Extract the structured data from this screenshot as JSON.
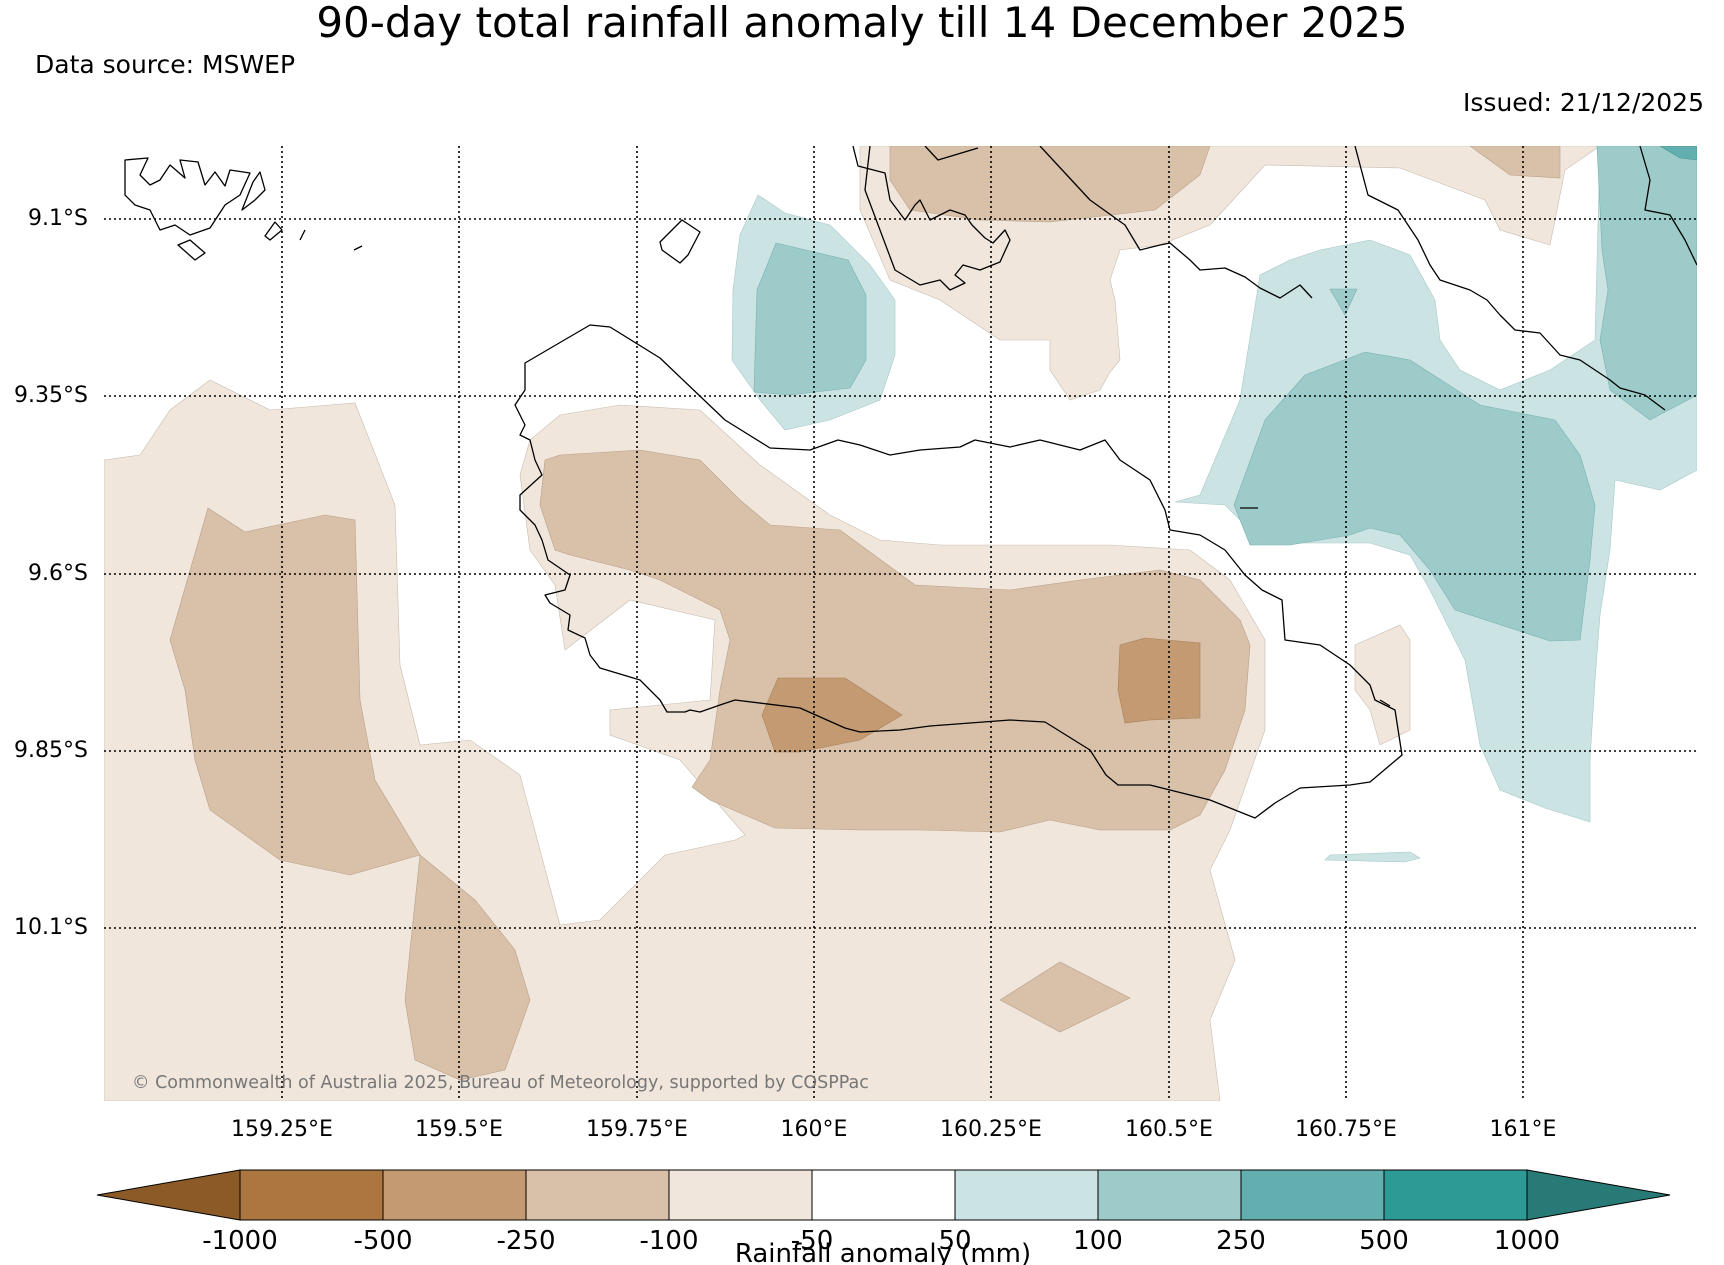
{
  "header": {
    "title": "90-day total rainfall anomaly till 14 December 2025",
    "source": "Data source: MSWEP",
    "issued": "Issued: 21/12/2025"
  },
  "map": {
    "lat_labels": [
      "9.1°S",
      "9.35°S",
      "9.6°S",
      "9.85°S",
      "10.1°S"
    ],
    "lon_labels": [
      "159.25°E",
      "159.5°E",
      "159.75°E",
      "160°E",
      "160.25°E",
      "160.5°E",
      "160.75°E",
      "161°E"
    ],
    "copyright": "© Commonwealth of Australia 2025, Bureau of Meteorology, supported by COSPPac"
  },
  "colorbar": {
    "ticks": [
      "-1000",
      "-500",
      "-250",
      "-100",
      "-50",
      "50",
      "100",
      "250",
      "500",
      "1000"
    ],
    "label": "Rainfall anomaly (mm)",
    "colors": [
      "#8c5a26",
      "#ac7641",
      "#c39a71",
      "#d9c0a8",
      "#f0e6dc",
      "#ffffff",
      "#cbe4e3",
      "#9ccbca",
      "#63aeae",
      "#2e9a95",
      "#277a76"
    ]
  }
}
